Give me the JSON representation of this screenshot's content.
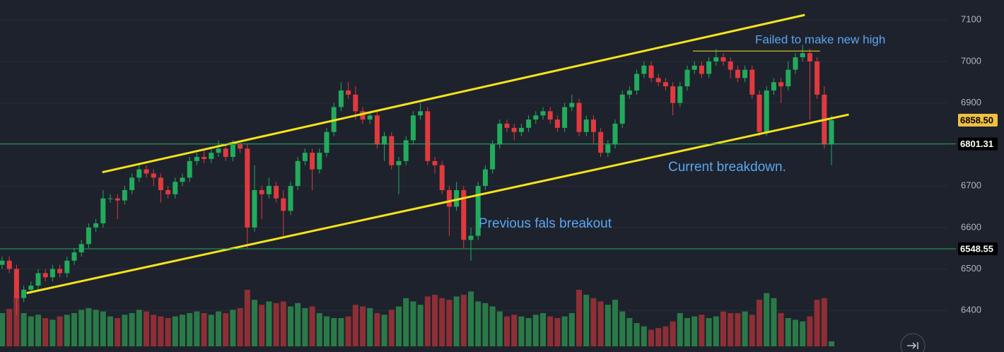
{
  "chart_data": {
    "type": "candlestick",
    "ylim": [
      6300,
      7148
    ],
    "yticks": [
      6400,
      6500,
      6600,
      6700,
      6800,
      6900,
      7000,
      7100
    ],
    "grid": true,
    "up_color": "#22ab5c",
    "down_color": "#e03a3e",
    "up_volume_color": "#2a7a48",
    "down_volume_color": "#8e2f36",
    "open": [
      6510,
      6520,
      6500,
      6430,
      6450,
      6460,
      6490,
      6480,
      6500,
      6490,
      6520,
      6540,
      6560,
      6600,
      6610,
      6670,
      6670,
      6665,
      6690,
      6720,
      6740,
      6730,
      6720,
      6690,
      6680,
      6710,
      6720,
      6760,
      6770,
      6765,
      6780,
      6790,
      6770,
      6800,
      6790,
      6600,
      6690,
      6680,
      6700,
      6670,
      6640,
      6700,
      6760,
      6780,
      6740,
      6780,
      6830,
      6890,
      6930,
      6920,
      6880,
      6860,
      6870,
      6800,
      6820,
      6750,
      6760,
      6810,
      6870,
      6880,
      6760,
      6750,
      6690,
      6650,
      6690,
      6570,
      6580,
      6700,
      6740,
      6800,
      6850,
      6840,
      6830,
      6840,
      6860,
      6870,
      6880,
      6860,
      6840,
      6890,
      6900,
      6830,
      6860,
      6830,
      6780,
      6800,
      6850,
      6920,
      6930,
      6970,
      6990,
      6960,
      6950,
      6940,
      6900,
      6940,
      6980,
      6990,
      6970,
      7000,
      7010,
      7000,
      6980,
      6960,
      6980,
      6920,
      6830,
      6930,
      6950,
      6940,
      6980,
      7010,
      7020,
      7000,
      6920,
      6800
    ],
    "high": [
      6530,
      6530,
      6510,
      6460,
      6470,
      6500,
      6500,
      6510,
      6510,
      6530,
      6550,
      6570,
      6610,
      6620,
      6690,
      6680,
      6680,
      6700,
      6730,
      6755,
      6750,
      6740,
      6730,
      6700,
      6720,
      6730,
      6770,
      6780,
      6790,
      6795,
      6810,
      6800,
      6810,
      6810,
      6800,
      6750,
      6700,
      6720,
      6710,
      6690,
      6710,
      6770,
      6790,
      6790,
      6790,
      6840,
      6900,
      6950,
      6950,
      6940,
      6890,
      6880,
      6880,
      6830,
      6830,
      6770,
      6820,
      6880,
      6900,
      6890,
      6770,
      6760,
      6700,
      6710,
      6700,
      6600,
      6710,
      6750,
      6810,
      6860,
      6860,
      6850,
      6850,
      6870,
      6880,
      6890,
      6890,
      6870,
      6900,
      6920,
      6910,
      6870,
      6870,
      6840,
      6810,
      6860,
      6930,
      6940,
      6980,
      7000,
      7000,
      6970,
      6960,
      6950,
      6950,
      6990,
      7000,
      7000,
      7010,
      7030,
      7020,
      7010,
      6990,
      6990,
      6990,
      6930,
      6940,
      6960,
      6960,
      7000,
      7020,
      7040,
      7030,
      7010,
      6940,
      6870
    ],
    "low": [
      6500,
      6490,
      6390,
      6420,
      6440,
      6450,
      6470,
      6470,
      6480,
      6480,
      6510,
      6530,
      6550,
      6590,
      6600,
      6660,
      6620,
      6655,
      6680,
      6710,
      6720,
      6700,
      6660,
      6670,
      6670,
      6700,
      6710,
      6750,
      6755,
      6755,
      6770,
      6760,
      6760,
      6780,
      6550,
      6590,
      6620,
      6670,
      6660,
      6580,
      6630,
      6690,
      6750,
      6690,
      6730,
      6770,
      6820,
      6880,
      6910,
      6860,
      6850,
      6850,
      6790,
      6760,
      6740,
      6680,
      6750,
      6800,
      6860,
      6750,
      6730,
      6680,
      6580,
      6640,
      6550,
      6520,
      6570,
      6690,
      6730,
      6790,
      6830,
      6810,
      6820,
      6830,
      6850,
      6860,
      6850,
      6830,
      6830,
      6880,
      6820,
      6820,
      6800,
      6770,
      6770,
      6790,
      6840,
      6910,
      6920,
      6960,
      6950,
      6940,
      6930,
      6870,
      6890,
      6930,
      6970,
      6960,
      6960,
      6990,
      6990,
      6960,
      6950,
      6950,
      6910,
      6820,
      6820,
      6920,
      6900,
      6930,
      6970,
      7000,
      6860,
      6910,
      6790,
      6750
    ],
    "close": [
      6520,
      6500,
      6430,
      6450,
      6460,
      6490,
      6480,
      6500,
      6490,
      6520,
      6540,
      6560,
      6600,
      6610,
      6670,
      6670,
      6665,
      6690,
      6720,
      6740,
      6730,
      6720,
      6690,
      6680,
      6710,
      6720,
      6760,
      6770,
      6765,
      6780,
      6790,
      6770,
      6800,
      6790,
      6600,
      6690,
      6680,
      6700,
      6670,
      6640,
      6700,
      6760,
      6780,
      6740,
      6780,
      6830,
      6890,
      6930,
      6920,
      6880,
      6860,
      6870,
      6800,
      6820,
      6750,
      6760,
      6810,
      6870,
      6880,
      6760,
      6750,
      6690,
      6650,
      6690,
      6570,
      6580,
      6700,
      6740,
      6800,
      6850,
      6840,
      6830,
      6840,
      6860,
      6870,
      6880,
      6860,
      6840,
      6890,
      6900,
      6830,
      6860,
      6830,
      6780,
      6800,
      6850,
      6920,
      6930,
      6970,
      6990,
      6960,
      6950,
      6940,
      6900,
      6940,
      6980,
      6990,
      6970,
      7000,
      7010,
      7000,
      6980,
      6960,
      6980,
      6920,
      6830,
      6930,
      6950,
      6940,
      6980,
      7010,
      7020,
      7000,
      6920,
      6800,
      6858.5
    ],
    "volume": [
      40,
      45,
      62,
      40,
      36,
      38,
      34,
      32,
      36,
      38,
      40,
      44,
      46,
      44,
      42,
      36,
      34,
      38,
      40,
      44,
      42,
      38,
      36,
      34,
      36,
      38,
      40,
      42,
      40,
      38,
      42,
      40,
      44,
      46,
      68,
      56,
      50,
      54,
      52,
      54,
      48,
      52,
      46,
      48,
      40,
      36,
      34,
      34,
      36,
      50,
      48,
      46,
      40,
      38,
      44,
      48,
      58,
      54,
      50,
      60,
      62,
      58,
      56,
      60,
      62,
      66,
      54,
      52,
      48,
      42,
      36,
      38,
      36,
      34,
      38,
      40,
      36,
      34,
      36,
      40,
      68,
      62,
      58,
      54,
      50,
      56,
      42,
      34,
      28,
      24,
      20,
      22,
      24,
      30,
      40,
      34,
      36,
      38,
      34,
      36,
      42,
      40,
      40,
      42,
      38,
      56,
      64,
      58,
      40,
      34,
      32,
      30,
      36,
      56,
      58,
      6
    ],
    "trend_lines": [
      {
        "x": [
          13.9,
          111.3
        ],
        "y": [
          6733,
          7112
        ],
        "color": "#f5e31a"
      },
      {
        "x": [
          3.4,
          117.4
        ],
        "y": [
          6442,
          6872
        ],
        "color": "#f5e31a"
      },
      {
        "x": [
          95.8,
          113.4
        ],
        "y": [
          7025,
          7025
        ],
        "color": "#c8c020"
      }
    ],
    "price_labels": [
      {
        "value": 6858.5,
        "label": "6858.50",
        "color": "#f0c040",
        "line": false
      },
      {
        "value": 6801.31,
        "color": "#000000",
        "line": true
      },
      {
        "value": 6548.55,
        "color": "#000000",
        "line": true
      }
    ],
    "annotations": [
      "Failed to make new high",
      "Current breakdown.",
      "Previous fals breakout"
    ]
  }
}
